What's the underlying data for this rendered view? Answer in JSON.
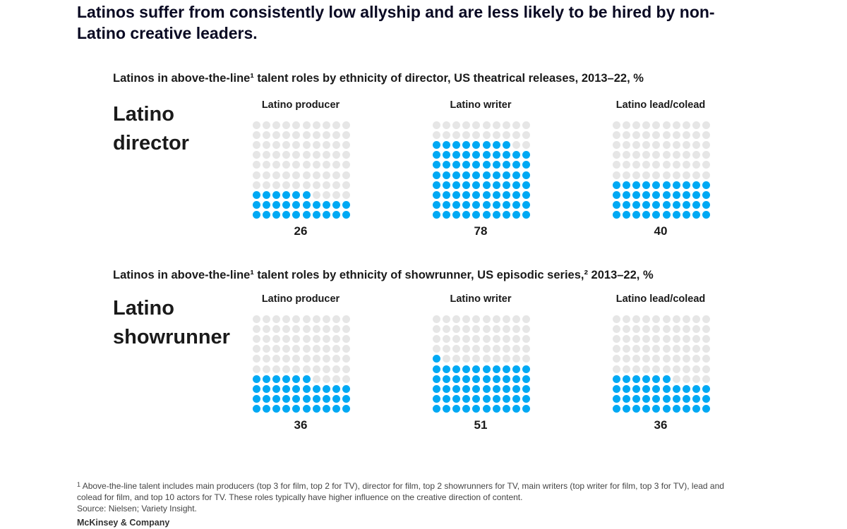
{
  "title": "Latinos suffer from consistently low allyship and are less likely to be hired by non-Latino creative leaders.",
  "colors": {
    "filled": "#00a9f4",
    "empty": "#e6e6e6"
  },
  "chart_data": [
    {
      "type": "waffle",
      "title": "Latinos in above-the-line¹ talent roles by ethnicity of director, US theatrical releases, 2013–22, %",
      "row_label_lines": [
        "Latino",
        "director"
      ],
      "categories": [
        "Latino producer",
        "Latino writer",
        "Latino lead/colead"
      ],
      "values": [
        26,
        78,
        40
      ],
      "value_labels": [
        "26",
        "78",
        "40"
      ],
      "grid": [
        10,
        10
      ]
    },
    {
      "type": "waffle",
      "title": "Latinos in above-the-line¹ talent roles by ethnicity of showrunner, US episodic series,² 2013–22, %",
      "row_label_lines": [
        "Latino",
        "showrunner"
      ],
      "categories": [
        "Latino producer",
        "Latino writer",
        "Latino lead/colead"
      ],
      "values": [
        36,
        51,
        36
      ],
      "value_labels": [
        "36",
        "51",
        "36"
      ],
      "grid": [
        10,
        10
      ]
    }
  ],
  "footnote": {
    "marker": "1",
    "text": "Above-the-line talent includes main producers (top 3 for film, top 2 for TV), director for film, top 2 showrunners for TV, main writers (top writer for film, top 3 for TV), lead and colead for film, and top 10 actors for TV. These roles typically have higher influence on the creative direction of content.",
    "source": "Source: Nielsen; Variety Insight."
  },
  "brand": "McKinsey & Company"
}
